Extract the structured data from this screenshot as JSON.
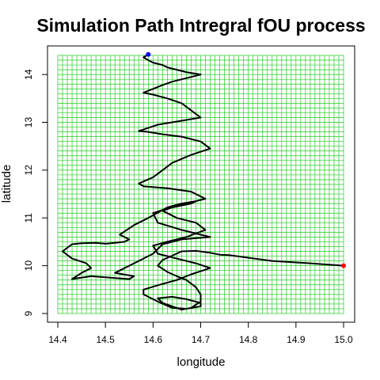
{
  "chart_data": {
    "type": "line",
    "title": "Simulation Path Intregral fOU process",
    "xlabel": "longitude",
    "ylabel": "latitude",
    "xlim": [
      14.4,
      15.0
    ],
    "ylim": [
      9.0,
      14.4
    ],
    "xticks": [
      "14.4",
      "14.5",
      "14.6",
      "14.7",
      "14.8",
      "14.9",
      "15.0"
    ],
    "yticks": [
      "9",
      "10",
      "11",
      "12",
      "13",
      "14"
    ],
    "grid": true,
    "grid_color": "#22cc22",
    "line_color": "#000000",
    "start_point": {
      "x": 15.0,
      "y": 10.0,
      "color": "#ff0000"
    },
    "end_point": {
      "x": 14.59,
      "y": 14.42,
      "color": "#0000ff"
    },
    "series": [
      {
        "x": [
          15.0,
          14.93,
          14.85,
          14.79,
          14.76,
          14.74,
          14.72,
          14.69,
          14.66,
          14.64,
          14.62,
          14.61,
          14.63,
          14.65,
          14.67,
          14.69,
          14.7,
          14.7,
          14.68,
          14.66,
          14.64,
          14.62,
          14.61,
          14.64,
          14.67,
          14.7,
          14.7,
          14.67,
          14.64,
          14.61,
          14.58,
          14.58,
          14.62,
          14.65,
          14.68,
          14.72,
          14.69,
          14.65,
          14.61,
          14.6,
          14.63,
          14.67,
          14.71,
          14.69,
          14.65,
          14.62,
          14.64,
          14.68,
          14.69,
          14.66,
          14.63,
          14.59,
          14.56,
          14.53,
          14.55,
          14.54,
          14.52,
          14.5,
          14.48,
          14.45,
          14.43,
          14.41,
          14.43,
          14.46,
          14.47,
          14.45,
          14.43,
          14.47,
          14.51,
          14.55,
          14.56,
          14.52,
          14.56,
          14.6,
          14.62,
          14.66,
          14.72,
          14.66,
          14.61,
          14.6,
          14.63,
          14.66,
          14.71,
          14.68,
          14.63,
          14.58,
          14.57,
          14.6,
          14.62,
          14.64,
          14.68,
          14.72,
          14.7,
          14.66,
          14.62,
          14.59,
          14.57,
          14.58,
          14.61,
          14.64,
          14.7,
          14.68,
          14.66,
          14.63,
          14.6,
          14.58,
          14.6,
          14.62,
          14.64,
          14.66,
          14.68,
          14.7,
          14.67,
          14.65,
          14.63,
          14.62,
          14.6,
          14.59,
          14.58,
          14.59
        ],
        "y": [
          10.0,
          10.05,
          10.1,
          10.18,
          10.22,
          10.23,
          10.27,
          10.31,
          10.3,
          10.21,
          10.12,
          10.0,
          9.87,
          9.78,
          9.7,
          9.55,
          9.4,
          9.25,
          9.12,
          9.08,
          9.15,
          9.22,
          9.32,
          9.35,
          9.3,
          9.22,
          9.15,
          9.1,
          9.12,
          9.25,
          9.4,
          9.5,
          9.62,
          9.7,
          9.82,
          9.95,
          10.05,
          10.15,
          10.25,
          10.42,
          10.5,
          10.6,
          10.75,
          10.9,
          11.0,
          11.15,
          11.22,
          11.3,
          11.35,
          11.3,
          11.22,
          11.0,
          10.85,
          10.65,
          10.55,
          10.5,
          10.48,
          10.46,
          10.48,
          10.47,
          10.45,
          10.3,
          10.15,
          10.05,
          9.95,
          9.85,
          9.72,
          9.78,
          9.75,
          9.72,
          9.78,
          9.85,
          10.05,
          10.25,
          10.45,
          10.55,
          10.6,
          10.75,
          10.9,
          11.1,
          11.2,
          11.28,
          11.4,
          11.55,
          11.62,
          11.66,
          11.72,
          11.85,
          12.0,
          12.15,
          12.32,
          12.45,
          12.6,
          12.7,
          12.75,
          12.8,
          12.82,
          12.85,
          12.95,
          13.0,
          13.1,
          13.25,
          13.4,
          13.5,
          13.58,
          13.62,
          13.7,
          13.78,
          13.85,
          13.9,
          13.95,
          14.0,
          14.05,
          14.1,
          14.15,
          14.2,
          14.25,
          14.3,
          14.36,
          14.42
        ]
      }
    ]
  }
}
